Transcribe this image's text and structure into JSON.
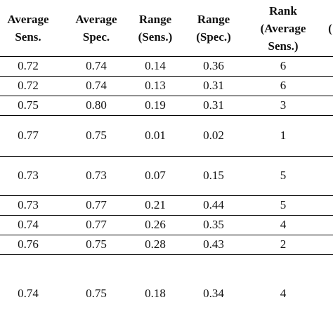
{
  "table": {
    "header": [
      [
        "Average",
        "Sens."
      ],
      [
        "Average",
        "Spec."
      ],
      [
        "Range",
        "(Sens.)"
      ],
      [
        "Range",
        "(Spec.)"
      ],
      [
        "Rank",
        "(Average",
        "Sens.)"
      ],
      [
        "("
      ]
    ],
    "rows": [
      [
        "0.72",
        "0.74",
        "0.14",
        "0.36",
        "6"
      ],
      [
        "0.72",
        "0.74",
        "0.13",
        "0.31",
        "6"
      ],
      [
        "0.75",
        "0.80",
        "0.19",
        "0.31",
        "3"
      ],
      [
        "0.77",
        "0.75",
        "0.01",
        "0.02",
        "1"
      ],
      [
        "0.73",
        "0.73",
        "0.07",
        "0.15",
        "5"
      ],
      [
        "0.73",
        "0.77",
        "0.21",
        "0.44",
        "5"
      ],
      [
        "0.74",
        "0.77",
        "0.26",
        "0.35",
        "4"
      ],
      [
        "0.76",
        "0.75",
        "0.28",
        "0.43",
        "2"
      ],
      [
        "0.74",
        "0.75",
        "0.18",
        "0.34",
        "4"
      ]
    ]
  }
}
